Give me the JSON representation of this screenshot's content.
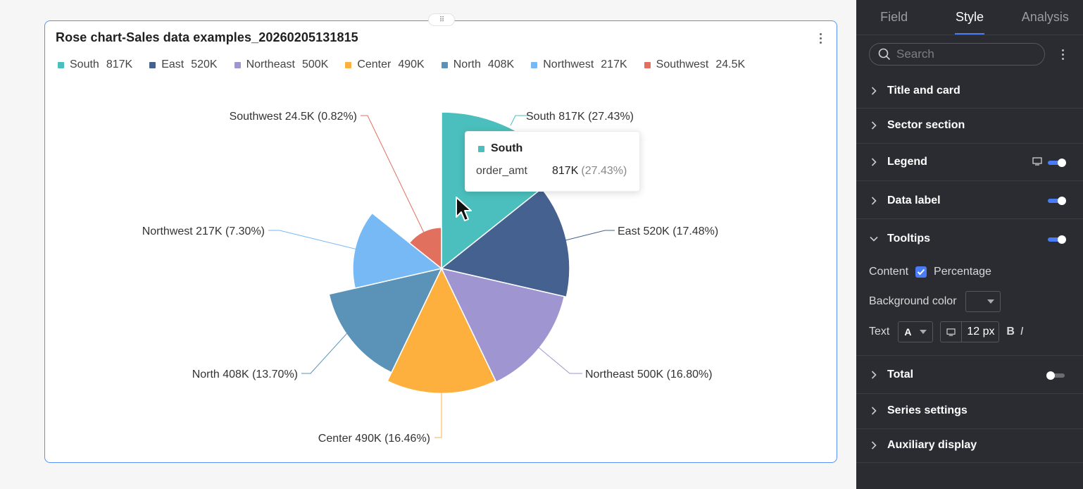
{
  "chart_card": {
    "title": "Rose chart-Sales data examples_20260205131815",
    "drag_handle": "⠿",
    "legend": [
      {
        "label": "South",
        "value": "817K",
        "color": "#4bbfbd"
      },
      {
        "label": "East",
        "value": "520K",
        "color": "#45618f"
      },
      {
        "label": "Northeast",
        "value": "500K",
        "color": "#9f95d0"
      },
      {
        "label": "Center",
        "value": "490K",
        "color": "#fdb03e"
      },
      {
        "label": "North",
        "value": "408K",
        "color": "#5b93b8"
      },
      {
        "label": "Northwest",
        "value": "217K",
        "color": "#76b9f5"
      },
      {
        "label": "Southwest",
        "value": "24.5K",
        "color": "#e2705f"
      }
    ],
    "tooltip": {
      "series": "South",
      "field": "order_amt",
      "value": "817K",
      "percent": "(27.43%)"
    }
  },
  "chart_data": {
    "type": "pie",
    "variant": "rose",
    "title": "Rose chart-Sales data examples_20260205131815",
    "measure": "order_amt",
    "categories": [
      "South",
      "East",
      "Northeast",
      "Center",
      "North",
      "Northwest",
      "Southwest"
    ],
    "values": [
      817000,
      520000,
      500000,
      490000,
      408000,
      217000,
      24500
    ],
    "percents": [
      27.43,
      17.48,
      16.8,
      16.46,
      13.7,
      7.3,
      0.82
    ],
    "labels": [
      "South 817K (27.43%)",
      "East 520K (17.48%)",
      "Northeast 500K (16.80%)",
      "Center 490K (16.46%)",
      "North 408K (13.70%)",
      "Northwest 217K (7.30%)",
      "Southwest 24.5K (0.82%)"
    ],
    "colors": [
      "#4bbfbd",
      "#45618f",
      "#9f95d0",
      "#fdb03e",
      "#5b93b8",
      "#76b9f5",
      "#e2705f"
    ],
    "legend_position": "top-left"
  },
  "panel": {
    "tabs": [
      "Field",
      "Style",
      "Analysis"
    ],
    "active_tab": "Style",
    "search_placeholder": "Search",
    "sections": {
      "title_card": "Title and card",
      "sector": "Sector section",
      "legend": "Legend",
      "data_label": "Data label",
      "tooltips": "Tooltips",
      "total": "Total",
      "series": "Series settings",
      "auxiliary": "Auxiliary display"
    },
    "tooltips_options": {
      "content_label": "Content",
      "percentage_label": "Percentage",
      "bg_color_label": "Background color",
      "text_label": "Text",
      "font_letter": "A",
      "font_size": "12 px",
      "bold": "B",
      "italic": "I"
    }
  }
}
